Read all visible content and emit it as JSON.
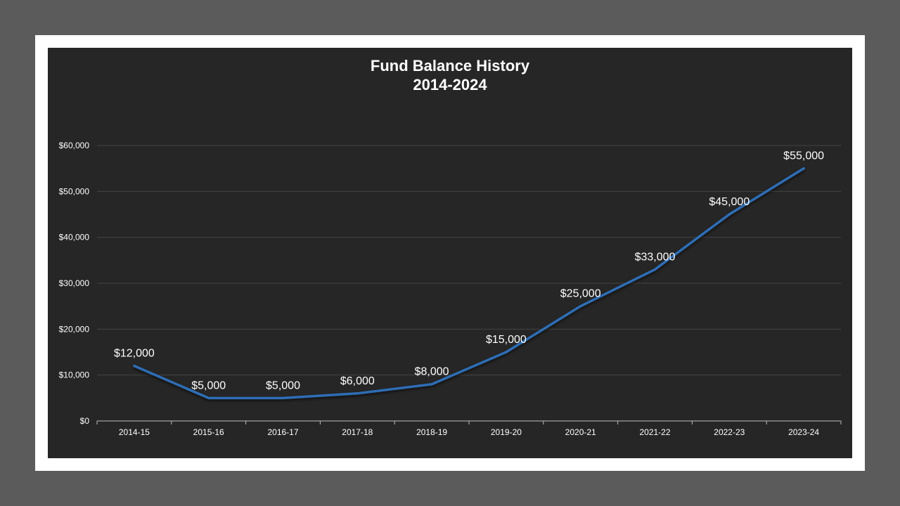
{
  "chart_data": {
    "type": "line",
    "title": "Fund Balance History",
    "subtitle": "2014-2024",
    "xlabel": "",
    "ylabel": "",
    "categories": [
      "2014-15",
      "2015-16",
      "2016-17",
      "2017-18",
      "2018-19",
      "2019-20",
      "2020-21",
      "2021-22",
      "2022-23",
      "2023-24"
    ],
    "series": [
      {
        "values": [
          12000,
          5000,
          5000,
          6000,
          8000,
          15000,
          25000,
          33000,
          45000,
          55000
        ]
      }
    ],
    "data_labels": [
      "$12,000",
      "$5,000",
      "$5,000",
      "$6,000",
      "$8,000",
      "$15,000",
      "$25,000",
      "$33,000",
      "$45,000",
      "$55,000"
    ],
    "y_ticks": [
      0,
      10000,
      20000,
      30000,
      40000,
      50000,
      60000
    ],
    "y_tick_labels": [
      "$0",
      "$10,000",
      "$20,000",
      "$30,000",
      "$40,000",
      "$50,000",
      "$60,000"
    ],
    "ylim": [
      0,
      60000
    ],
    "grid": true,
    "legend": "none",
    "colors": {
      "line": "#2e6db4",
      "background": "#262626",
      "grid": "#444444",
      "text": "#ffffff"
    }
  }
}
